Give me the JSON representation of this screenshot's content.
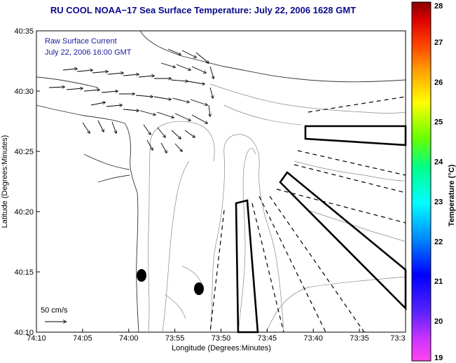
{
  "title": "RU COOL  NOAA−17  Sea Surface Temperature:  July 22, 2006 1628 GMT",
  "legend": {
    "line1": "Raw Surface Current",
    "line2": "July 22, 2006 16:00 GMT"
  },
  "scale_label": "50 cm/s",
  "map": {
    "x_axis_label": "Longitude (Degrees:Minutes)",
    "y_axis_label": "Latitude (Degrees:Minutes)",
    "x_ticks": [
      "74:10",
      "74:05",
      "74:00",
      "73:55",
      "73:50",
      "73:45",
      "73:40",
      "73:35",
      "73:3"
    ],
    "y_ticks": [
      "40:35",
      "40:30",
      "40:25",
      "40:20",
      "40:15",
      "40:10"
    ]
  },
  "colorbar": {
    "label": "Temperature (°C)",
    "ticks": [
      "28",
      "27",
      "26",
      "25",
      "24",
      "23",
      "22",
      "21",
      "20",
      "19"
    ],
    "min": 19,
    "max": 28
  }
}
